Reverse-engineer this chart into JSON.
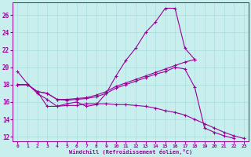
{
  "bg_color": "#c8eeee",
  "line_color": "#990099",
  "grid_color": "#aadddd",
  "xlabel": "Windchill (Refroidissement éolien,°C)",
  "xlabel_color": "#990099",
  "tick_color": "#990099",
  "xlim": [
    -0.5,
    23.5
  ],
  "ylim": [
    11.5,
    27.5
  ],
  "yticks": [
    12,
    14,
    16,
    18,
    20,
    22,
    24,
    26
  ],
  "xticks": [
    0,
    1,
    2,
    3,
    4,
    5,
    6,
    7,
    8,
    9,
    10,
    11,
    12,
    13,
    14,
    15,
    16,
    17,
    18,
    19,
    20,
    21,
    22,
    23
  ],
  "line1_y": [
    19.5,
    18.1,
    17.0,
    16.3,
    15.5,
    15.8,
    16.0,
    15.5,
    15.7,
    17.0,
    19.0,
    20.8,
    22.2,
    24.0,
    25.2,
    26.8,
    26.8,
    22.2,
    20.9,
    null,
    null,
    null,
    null,
    null
  ],
  "line2_y": [
    18.0,
    18.0,
    17.2,
    15.5,
    15.5,
    15.6,
    15.6,
    15.8,
    15.8,
    15.8,
    15.7,
    15.7,
    15.6,
    15.5,
    15.3,
    15.0,
    14.8,
    14.5,
    14.0,
    13.5,
    13.0,
    12.5,
    12.1,
    11.8
  ],
  "line3_y": [
    18.0,
    18.0,
    17.2,
    17.0,
    16.3,
    16.3,
    16.4,
    16.5,
    16.8,
    17.2,
    17.8,
    18.2,
    18.6,
    19.0,
    19.4,
    19.8,
    20.2,
    20.6,
    20.9,
    null,
    null,
    null,
    null,
    null
  ],
  "line4_y": [
    18.0,
    18.0,
    17.2,
    17.0,
    16.3,
    16.2,
    16.3,
    16.4,
    16.6,
    17.0,
    17.6,
    18.0,
    18.4,
    18.8,
    19.2,
    19.5,
    20.0,
    19.8,
    17.7,
    13.0,
    12.5,
    12.1,
    11.8,
    null
  ]
}
